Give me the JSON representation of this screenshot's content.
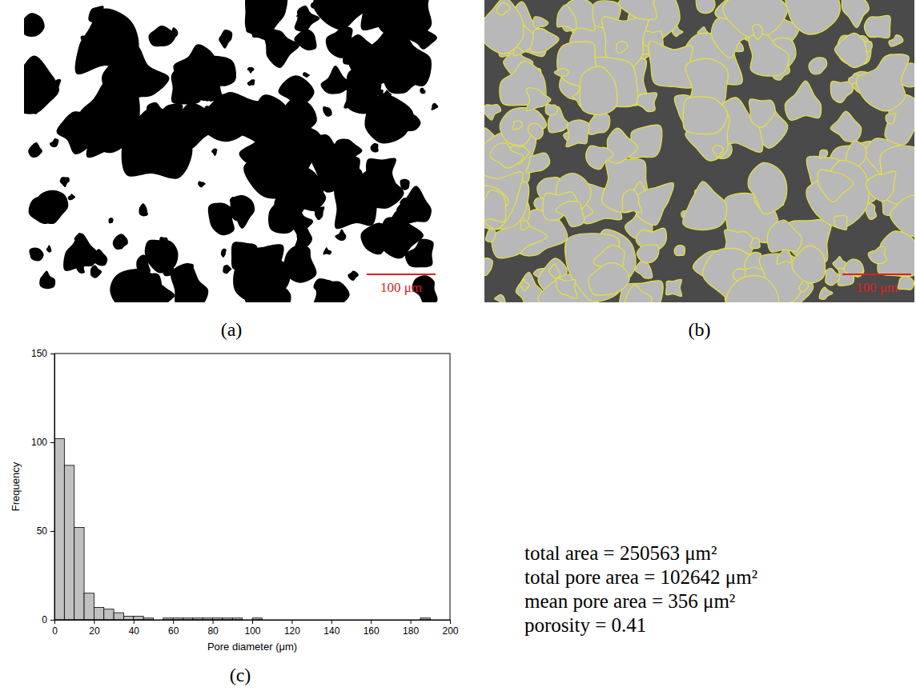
{
  "chart_data": {
    "type": "histogram",
    "x_label": "Pore diameter (μm)",
    "y_label": "Frequency",
    "bins": [
      0,
      5,
      10,
      15,
      20,
      25,
      30,
      35,
      40,
      45,
      50,
      55,
      60,
      65,
      70,
      75,
      80,
      85,
      90,
      95,
      100,
      105,
      110,
      115,
      120,
      125,
      130,
      135,
      140,
      145,
      150,
      155,
      160,
      165,
      170,
      175,
      180,
      185,
      190
    ],
    "values": [
      102,
      87,
      52,
      15,
      7,
      6,
      4,
      2,
      2,
      1,
      0,
      1,
      1,
      1,
      1,
      1,
      1,
      1,
      1,
      0,
      1,
      0,
      0,
      0,
      0,
      0,
      0,
      0,
      0,
      0,
      0,
      0,
      0,
      0,
      0,
      0,
      0,
      1
    ],
    "color": "#c0c0c0",
    "xlim": [
      0,
      200
    ],
    "xticks": [
      0,
      20,
      40,
      60,
      80,
      100,
      120,
      140,
      160,
      180,
      200
    ],
    "ylim": [
      0,
      150
    ],
    "yticks": [
      0,
      50,
      100,
      150
    ],
    "grid": false
  },
  "figure": {
    "panels": [
      {
        "label": "(a)",
        "scale_bar": "100 μm"
      },
      {
        "label": "(b)",
        "scale_bar": "100 μm"
      },
      {
        "label": "(c)"
      }
    ],
    "stats": [
      "total area = 250563 μm²",
      "total pore area = 102642 μm²",
      "mean pore area = 356 μm²",
      "porosity = 0.41"
    ]
  }
}
